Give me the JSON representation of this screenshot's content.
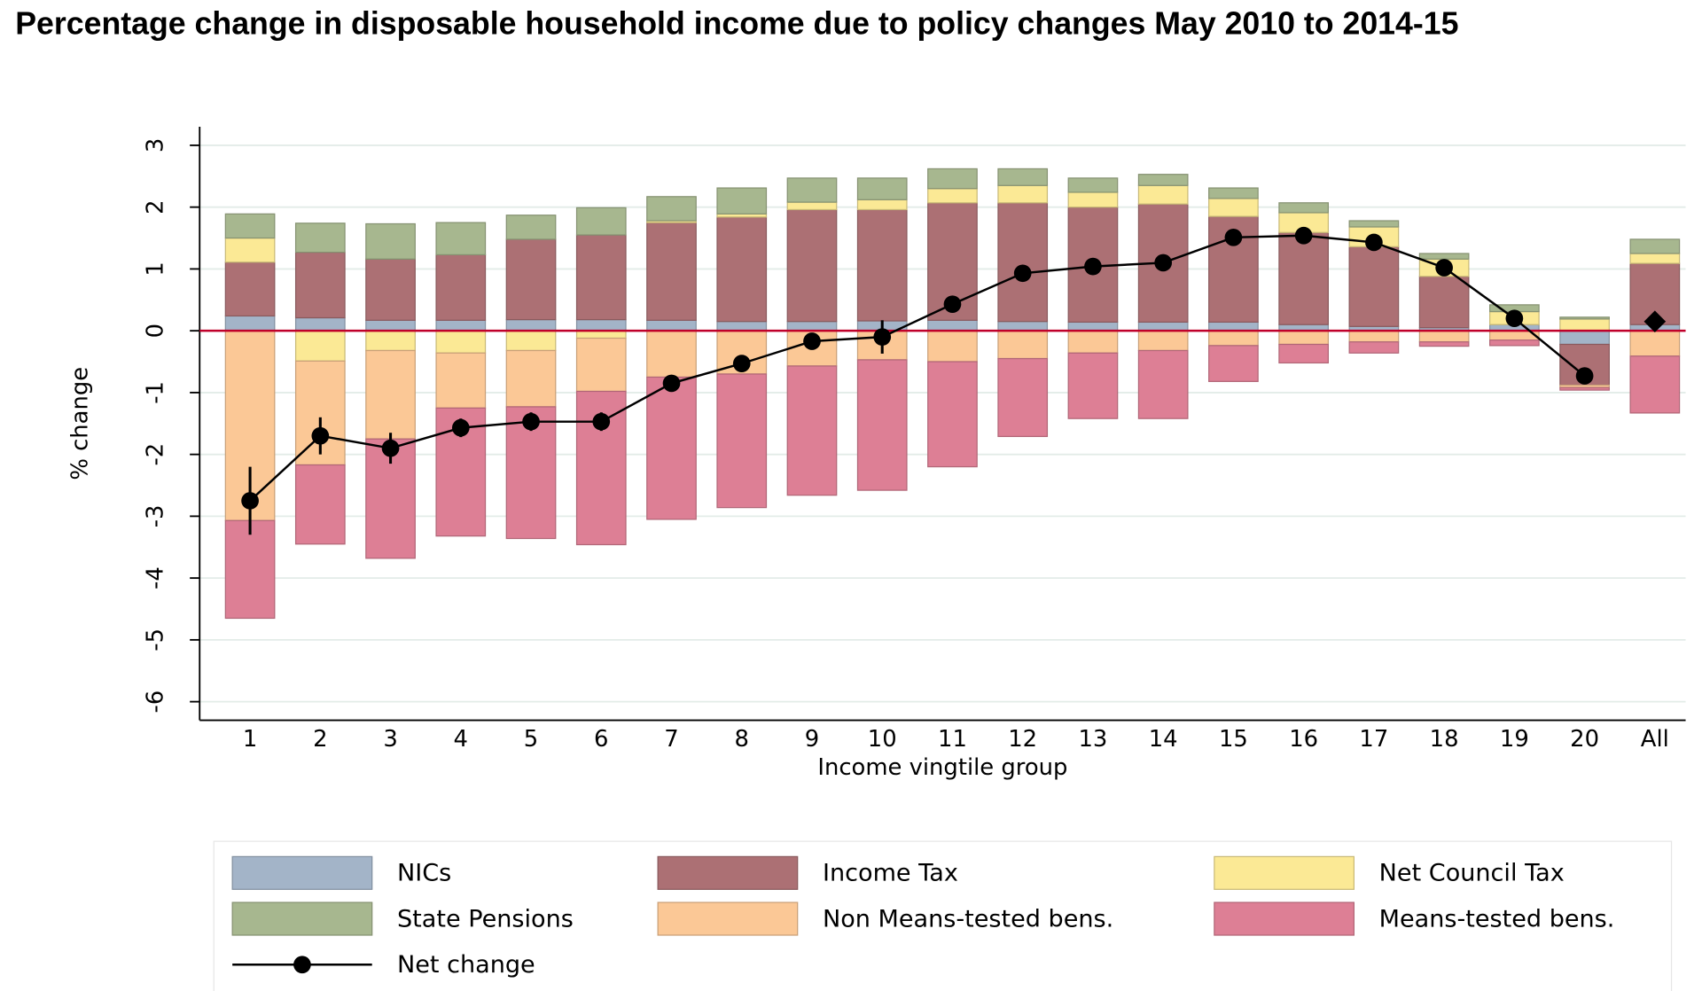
{
  "chart_data": {
    "type": "bar",
    "stacked": true,
    "title": "Percentage change in disposable household income due to policy changes May 2010 to 2014-15",
    "y_label": "% change",
    "x_label": "Income vingtile group",
    "categories": [
      "1",
      "2",
      "3",
      "4",
      "5",
      "6",
      "7",
      "8",
      "9",
      "10",
      "11",
      "12",
      "13",
      "14",
      "15",
      "16",
      "17",
      "18",
      "19",
      "20",
      "All"
    ],
    "ylim": [
      -6.3,
      3.3
    ],
    "yticks": [
      3,
      2,
      1,
      0,
      -1,
      -2,
      -3,
      -4,
      -5,
      -6
    ],
    "grid": true,
    "zero_line_color": "#c0002a",
    "series": [
      {
        "name": "NICs",
        "color": "#a3b4c8",
        "values": [
          0.24,
          0.21,
          0.17,
          0.17,
          0.18,
          0.18,
          0.17,
          0.15,
          0.15,
          0.16,
          0.17,
          0.15,
          0.14,
          0.14,
          0.14,
          0.1,
          0.07,
          0.05,
          0.1,
          -0.22,
          0.1
        ]
      },
      {
        "name": "Income Tax",
        "color": "#ac7074",
        "values": [
          0.87,
          1.06,
          0.99,
          1.06,
          1.3,
          1.37,
          1.58,
          1.69,
          1.81,
          1.8,
          1.9,
          1.92,
          1.86,
          1.91,
          1.71,
          1.49,
          1.29,
          0.83,
          0,
          -0.66,
          0.99
        ]
      },
      {
        "name": "Net Council Tax",
        "color": "#fbe995",
        "values": [
          0.39,
          -0.49,
          -0.32,
          -0.36,
          -0.32,
          -0.12,
          0.03,
          0.05,
          0.12,
          0.16,
          0.23,
          0.28,
          0.24,
          0.3,
          0.29,
          0.32,
          0.32,
          0.28,
          0.21,
          0.19,
          0.16
        ]
      },
      {
        "name": "State Pensions",
        "color": "#a7b78f",
        "values": [
          0.39,
          0.47,
          0.57,
          0.52,
          0.39,
          0.44,
          0.39,
          0.42,
          0.39,
          0.35,
          0.32,
          0.27,
          0.23,
          0.18,
          0.17,
          0.16,
          0.1,
          0.09,
          0.11,
          0.03,
          0.23
        ]
      },
      {
        "name": "Non Means-tested bens.",
        "color": "#fbc896",
        "values": [
          -3.07,
          -1.68,
          -1.43,
          -0.89,
          -0.91,
          -0.86,
          -0.75,
          -0.7,
          -0.57,
          -0.47,
          -0.5,
          -0.45,
          -0.36,
          -0.32,
          -0.24,
          -0.22,
          -0.18,
          -0.18,
          -0.15,
          -0.04,
          -0.41
        ]
      },
      {
        "name": "Means-tested bens.",
        "color": "#dd7f95",
        "values": [
          -1.58,
          -1.28,
          -1.93,
          -2.07,
          -2.13,
          -2.48,
          -2.3,
          -2.16,
          -2.09,
          -2.11,
          -1.7,
          -1.26,
          -1.06,
          -1.1,
          -0.58,
          -0.3,
          -0.18,
          -0.07,
          -0.09,
          -0.04,
          -0.92
        ]
      },
      {
        "name": "Net change",
        "type": "line",
        "color": "#000000",
        "values": [
          -2.75,
          -1.7,
          -1.9,
          -1.57,
          -1.47,
          -1.47,
          -0.85,
          -0.53,
          -0.17,
          -0.1,
          0.43,
          0.93,
          1.04,
          1.1,
          1.51,
          1.54,
          1.43,
          1.02,
          0.2,
          -0.73,
          0.15
        ],
        "errors": [
          0.55,
          0.3,
          0.25,
          0.15,
          0.15,
          0.15,
          0.12,
          0.12,
          0.1,
          0.27,
          0.12,
          0.05,
          0.05,
          0.05,
          0.05,
          0.05,
          0.05,
          0.05,
          0.05,
          0.1,
          null
        ]
      }
    ]
  }
}
